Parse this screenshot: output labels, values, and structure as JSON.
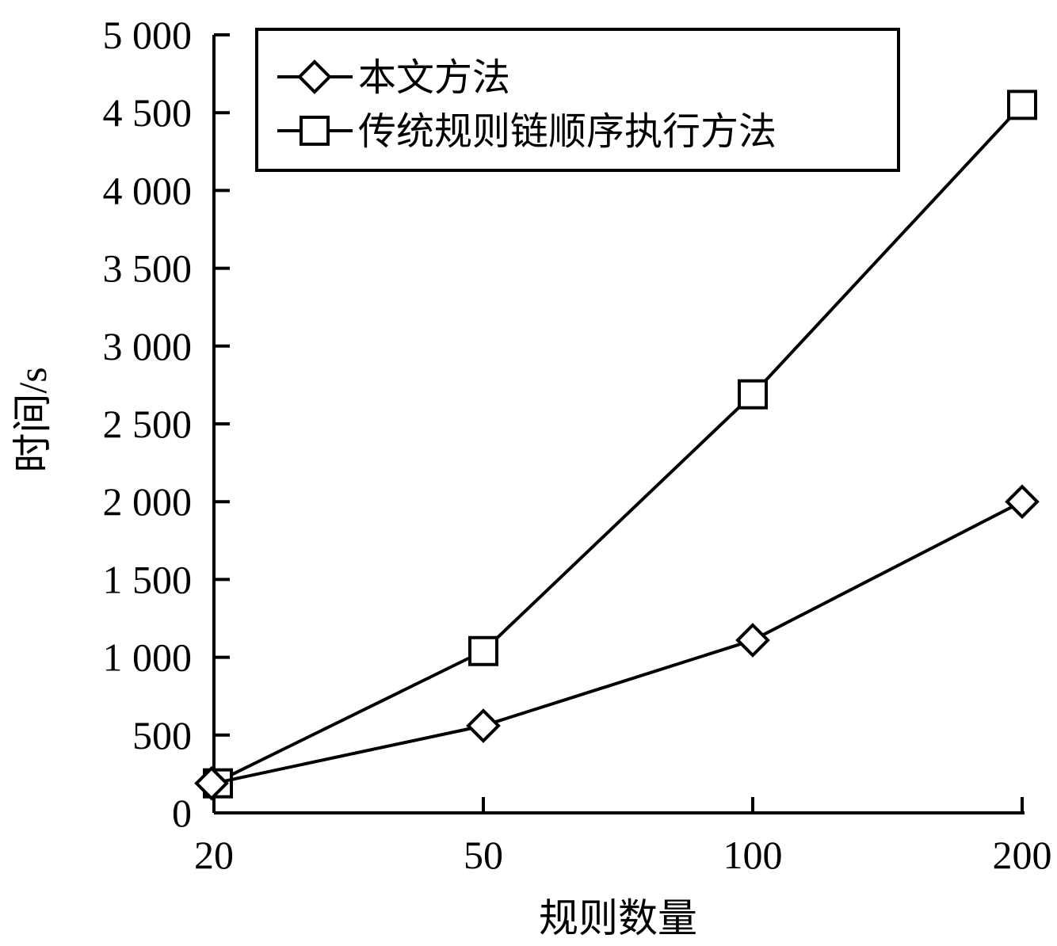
{
  "chart_data": {
    "type": "line",
    "categories": [
      "20",
      "50",
      "100",
      "200"
    ],
    "xlabel": "规则数量",
    "ylabel": "时间/s",
    "ylim": [
      0,
      5000
    ],
    "yticks": [
      0,
      500,
      1000,
      1500,
      2000,
      2500,
      3000,
      3500,
      4000,
      4500,
      5000
    ],
    "ytick_labels": [
      "0",
      "500",
      "1 000",
      "1 500",
      "2 000",
      "2 500",
      "3 000",
      "3 500",
      "4 000",
      "4 500",
      "5 000"
    ],
    "grid": false,
    "legend_position": "top-left",
    "series": [
      {
        "name": "本文方法",
        "marker": "diamond",
        "values": [
          190,
          560,
          1110,
          2000
        ]
      },
      {
        "name": "传统规则链顺序执行方法",
        "marker": "square",
        "values": [
          190,
          1040,
          2690,
          4550
        ]
      }
    ]
  }
}
